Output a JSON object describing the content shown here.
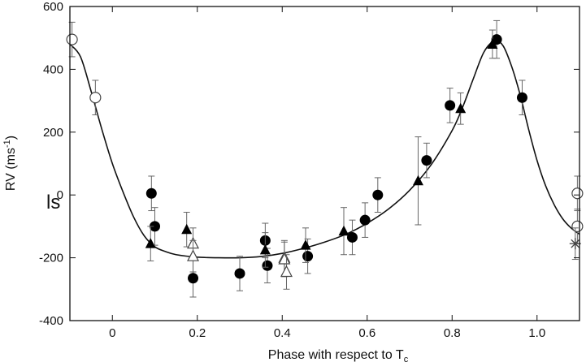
{
  "chart_data": {
    "type": "scatter",
    "xlabel": "Phase with respect to T",
    "xlabel_sub": "c",
    "ylabel": "RV (ms",
    "ylabel_sup": "-1",
    "ylabel_close": ")",
    "xlim": [
      -0.1,
      1.1
    ],
    "ylim": [
      -400,
      600
    ],
    "xticks": [
      "0",
      "0.2",
      "0.4",
      "0.6",
      "0.8",
      "1.0"
    ],
    "xtick_values": [
      0,
      0.2,
      0.4,
      0.6,
      0.8,
      1.0
    ],
    "yticks": [
      "-400",
      "-200",
      "0",
      "200",
      "400",
      "600"
    ],
    "ytick_values": [
      -400,
      -200,
      0,
      200,
      400,
      600
    ],
    "grid": false,
    "model_curve": {
      "x": [
        -0.1,
        -0.075,
        -0.05,
        -0.025,
        0.0,
        0.025,
        0.05,
        0.075,
        0.1,
        0.125,
        0.15,
        0.2,
        0.25,
        0.3,
        0.35,
        0.4,
        0.45,
        0.5,
        0.55,
        0.6,
        0.65,
        0.7,
        0.75,
        0.8,
        0.825,
        0.85,
        0.875,
        0.9,
        0.92,
        0.94,
        0.96,
        0.98,
        1.0,
        1.02,
        1.04,
        1.06,
        1.08,
        1.1
      ],
      "y": [
        480,
        440,
        330,
        210,
        100,
        10,
        -70,
        -130,
        -165,
        -180,
        -190,
        -198,
        -200,
        -200,
        -196,
        -186,
        -170,
        -150,
        -125,
        -90,
        -45,
        15,
        95,
        205,
        280,
        370,
        455,
        490,
        475,
        410,
        320,
        210,
        110,
        30,
        -30,
        -75,
        -105,
        -125
      ]
    },
    "series": [
      {
        "marker": "filled-circle",
        "x": [
          0.092,
          0.1,
          0.19,
          0.3,
          0.36,
          0.365,
          0.46,
          0.565,
          0.595,
          0.625,
          0.74,
          0.795,
          0.905,
          0.965
        ],
        "y": [
          5,
          -100,
          -265,
          -250,
          -145,
          -225,
          -195,
          -135,
          -80,
          0,
          110,
          285,
          495,
          310
        ],
        "err": [
          55,
          60,
          60,
          55,
          55,
          55,
          55,
          55,
          55,
          55,
          55,
          55,
          60,
          55
        ]
      },
      {
        "marker": "open-circle",
        "x": [
          -0.095,
          -0.04,
          1.095,
          1.095
        ],
        "y": [
          495,
          310,
          5,
          -100
        ],
        "err": [
          55,
          55,
          55,
          55
        ]
      },
      {
        "marker": "filled-triangle",
        "x": [
          0.09,
          0.175,
          0.36,
          0.455,
          0.545,
          0.72,
          0.82,
          0.895
        ],
        "y": [
          -155,
          -110,
          -175,
          -160,
          -115,
          45,
          275,
          480
        ],
        "err": [
          55,
          55,
          55,
          55,
          75,
          140,
          50,
          45
        ]
      },
      {
        "marker": "open-triangle",
        "x": [
          0.19,
          0.19,
          0.405,
          0.405,
          0.41
        ],
        "y": [
          -155,
          -195,
          -200,
          -205,
          -245
        ],
        "err": [
          50,
          50,
          55,
          55,
          55
        ]
      },
      {
        "marker": "star",
        "x": [
          1.09
        ],
        "y": [
          -155
        ],
        "err": [
          50
        ]
      }
    ]
  },
  "stray_text": "ls"
}
